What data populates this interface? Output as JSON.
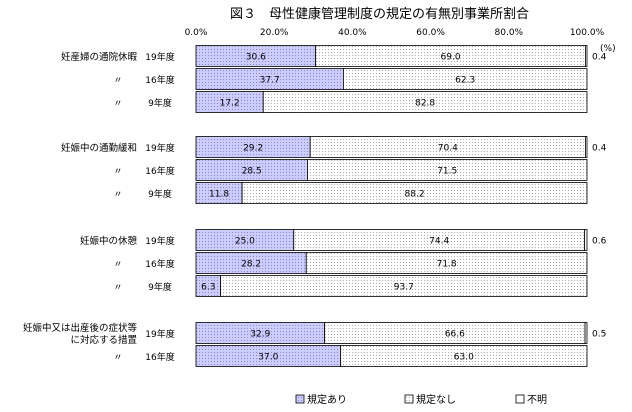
{
  "chart_data": {
    "type": "bar",
    "stacked": true,
    "orientation": "horizontal",
    "title": "図３　母性健康管理制度の規定の有無別事業所割合",
    "unit": "(%)",
    "xlim": [
      0,
      100
    ],
    "x_ticks": [
      "0.0%",
      "20.0%",
      "40.0%",
      "60.0%",
      "80.0%",
      "100.0%"
    ],
    "legend_position": "bottom",
    "series": [
      {
        "name": "規定あり",
        "color": "#ccccff",
        "pattern": "dots"
      },
      {
        "name": "規定なし",
        "color": "#ffffff",
        "pattern": "dots"
      },
      {
        "name": "不明",
        "color": "#ffffff",
        "pattern": "none"
      }
    ],
    "groups": [
      {
        "label": [
          "妊産婦の通院休暇"
        ],
        "rows": [
          {
            "year": "19年度",
            "values": [
              30.6,
              69.0,
              0.4
            ]
          },
          {
            "year": "16年度",
            "values": [
              37.7,
              62.3,
              0.0
            ]
          },
          {
            "year": "9年度",
            "values": [
              17.2,
              82.8,
              0.0
            ]
          }
        ]
      },
      {
        "label": [
          "妊娠中の通勤緩和"
        ],
        "rows": [
          {
            "year": "19年度",
            "values": [
              29.2,
              70.4,
              0.4
            ]
          },
          {
            "year": "16年度",
            "values": [
              28.5,
              71.5,
              0.0
            ]
          },
          {
            "year": "9年度",
            "values": [
              11.8,
              88.2,
              0.0
            ]
          }
        ]
      },
      {
        "label": [
          "妊娠中の休憩"
        ],
        "rows": [
          {
            "year": "19年度",
            "values": [
              25.0,
              74.4,
              0.6
            ]
          },
          {
            "year": "16年度",
            "values": [
              28.2,
              71.8,
              0.0
            ]
          },
          {
            "year": "9年度",
            "values": [
              6.3,
              93.7,
              0.0
            ]
          }
        ]
      },
      {
        "label": [
          "妊娠中又は出産後の症状等",
          "に対応する措置"
        ],
        "rows": [
          {
            "year": "19年度",
            "values": [
              32.9,
              66.6,
              0.5
            ]
          },
          {
            "year": "16年度",
            "values": [
              37.0,
              63.0,
              0.0
            ]
          }
        ]
      }
    ],
    "ditto_mark": "〃",
    "value_labels": [
      [
        "30.6",
        "69.0",
        "0.4"
      ],
      [
        "37.7",
        "62.3",
        ""
      ],
      [
        "17.2",
        "82.8",
        ""
      ],
      [
        "29.2",
        "70.4",
        "0.4"
      ],
      [
        "28.5",
        "71.5",
        ""
      ],
      [
        "11.8",
        "88.2",
        ""
      ],
      [
        "25.0",
        "74.4",
        "0.6"
      ],
      [
        "28.2",
        "71.8",
        ""
      ],
      [
        "6.3",
        "93.7",
        ""
      ],
      [
        "32.9",
        "66.6",
        "0.5"
      ],
      [
        "37.0",
        "63.0",
        ""
      ]
    ]
  }
}
